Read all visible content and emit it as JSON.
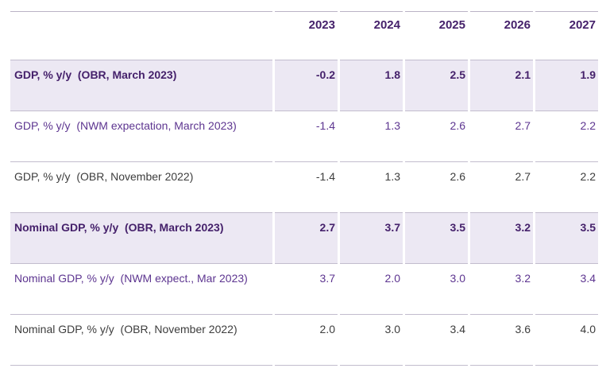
{
  "table": {
    "columns": [
      "",
      "2023",
      "2024",
      "2025",
      "2026",
      "2027"
    ],
    "rows": [
      {
        "label": "GDP, % y/y  (OBR, March 2023)",
        "values": [
          "-0.2",
          "1.8",
          "2.5",
          "2.1",
          "1.9"
        ]
      },
      {
        "label": "GDP, % y/y  (NWM expectation, March 2023)",
        "values": [
          "-1.4",
          "1.3",
          "2.6",
          "2.7",
          "2.2"
        ]
      },
      {
        "label": "GDP, % y/y  (OBR, November 2022)",
        "values": [
          "-1.4",
          "1.3",
          "2.6",
          "2.7",
          "2.2"
        ]
      },
      {
        "label": "Nominal GDP, % y/y  (OBR, March 2023)",
        "values": [
          "2.7",
          "3.7",
          "3.5",
          "3.2",
          "3.5"
        ]
      },
      {
        "label": "Nominal GDP, % y/y  (NWM expect., Mar 2023)",
        "values": [
          "3.7",
          "2.0",
          "3.0",
          "3.2",
          "3.4"
        ]
      },
      {
        "label": "Nominal GDP, % y/y  (OBR, November 2022)",
        "values": [
          "2.0",
          "3.0",
          "3.4",
          "3.6",
          "4.0"
        ]
      }
    ],
    "colors": {
      "header_text": "#45216b",
      "highlight_row_bg": "#ece8f3",
      "highlight_row_text": "#45216b",
      "purple_row_text": "#5d3590",
      "plain_row_text": "#3d3d3d",
      "rule_line": "#c2bccd",
      "page_bg": "#ffffff"
    }
  },
  "chart_data": {
    "type": "table",
    "title": "",
    "categories": [
      "2023",
      "2024",
      "2025",
      "2026",
      "2027"
    ],
    "series": [
      {
        "name": "GDP, % y/y (OBR, March 2023)",
        "values": [
          -0.2,
          1.8,
          2.5,
          2.1,
          1.9
        ]
      },
      {
        "name": "GDP, % y/y (NWM expectation, March 2023)",
        "values": [
          -1.4,
          1.3,
          2.6,
          2.7,
          2.2
        ]
      },
      {
        "name": "GDP, % y/y (OBR, November 2022)",
        "values": [
          -1.4,
          1.3,
          2.6,
          2.7,
          2.2
        ]
      },
      {
        "name": "Nominal GDP, % y/y (OBR, March 2023)",
        "values": [
          2.7,
          3.7,
          3.5,
          3.2,
          3.5
        ]
      },
      {
        "name": "Nominal GDP, % y/y (NWM expect., Mar 2023)",
        "values": [
          3.7,
          2.0,
          3.0,
          3.2,
          3.4
        ]
      },
      {
        "name": "Nominal GDP, % y/y (OBR, November 2022)",
        "values": [
          2.0,
          3.0,
          3.4,
          3.6,
          4.0
        ]
      }
    ]
  }
}
